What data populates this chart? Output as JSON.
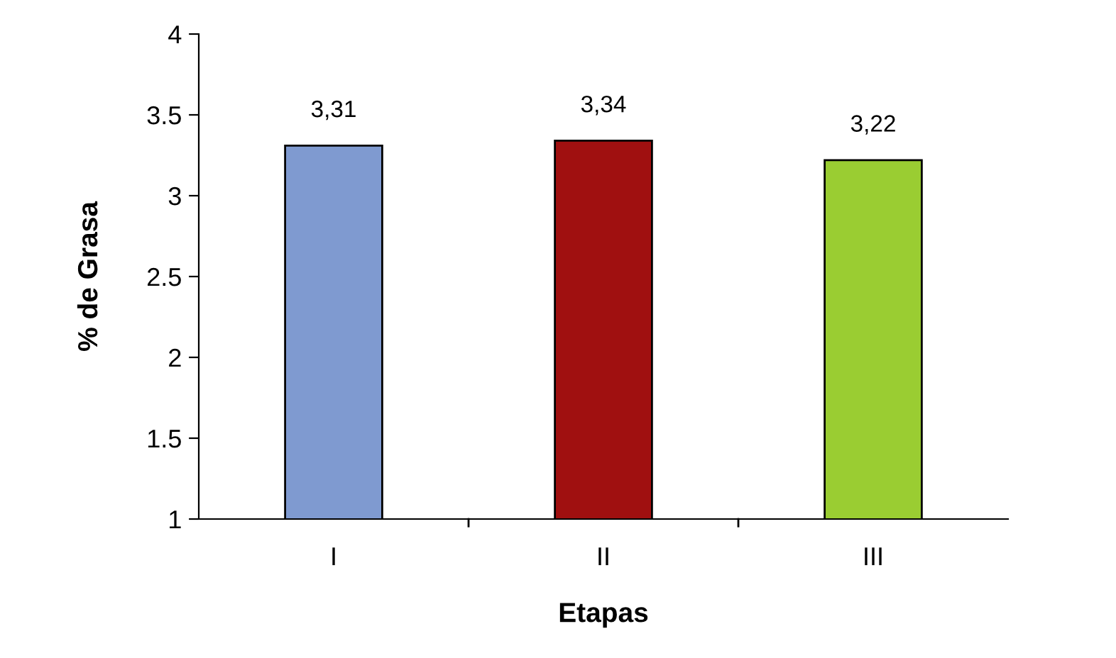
{
  "chart_data": {
    "type": "bar",
    "xlabel": "Etapas",
    "ylabel": "% de Grasa",
    "categories": [
      "I",
      "II",
      "III"
    ],
    "values": [
      3.31,
      3.34,
      3.22
    ],
    "value_labels": [
      "3,31",
      "3,34",
      "3,22"
    ],
    "colors": [
      "#7f9ad0",
      "#a01010",
      "#9acd32"
    ],
    "ylim": [
      1,
      4
    ],
    "yticks": [
      1,
      1.5,
      2,
      2.5,
      3,
      3.5,
      4
    ],
    "grid": false,
    "legend": false
  }
}
